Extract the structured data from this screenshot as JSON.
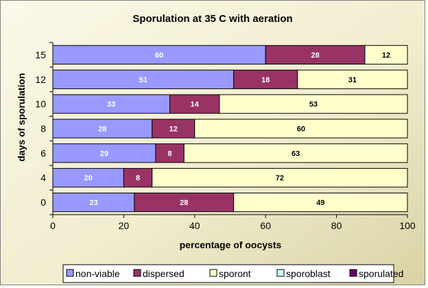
{
  "chart_data": {
    "type": "bar",
    "orientation": "horizontal",
    "stacked": true,
    "title": "Sporulation at 35 C with aeration",
    "xlabel": "percentage of oocysts",
    "ylabel": "days of sporulation",
    "xlim": [
      0,
      100
    ],
    "xticks": [
      "0",
      "20",
      "40",
      "60",
      "80",
      "100"
    ],
    "categories": [
      "15",
      "12",
      "10",
      "8",
      "6",
      "4",
      "0"
    ],
    "series": [
      {
        "name": "non-viable",
        "color": "#9999ff",
        "values": [
          60,
          51,
          33,
          28,
          29,
          20,
          23
        ]
      },
      {
        "name": "dispersed",
        "color": "#993366",
        "values": [
          28,
          18,
          14,
          12,
          8,
          8,
          28
        ]
      },
      {
        "name": "sporont",
        "color": "#ffffcc",
        "values": [
          12,
          31,
          53,
          60,
          63,
          72,
          49
        ]
      },
      {
        "name": "sporoblast",
        "color": "#ccffff",
        "values": [
          0,
          0,
          0,
          0,
          0,
          0,
          0
        ]
      },
      {
        "name": "sporulated",
        "color": "#660066",
        "values": [
          0,
          0,
          0,
          0,
          0,
          0,
          0
        ]
      }
    ],
    "legend": "bottom",
    "grid": false,
    "background": "#f0eccc"
  }
}
